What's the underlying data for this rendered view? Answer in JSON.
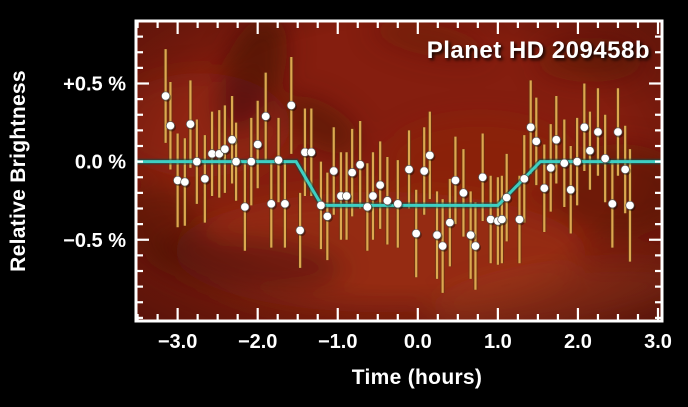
{
  "figure": {
    "title": "Planet HD 209458b",
    "xlabel": "Time (hours)",
    "ylabel": "Relative Brightness"
  },
  "chart_data": {
    "type": "scatter",
    "title": "Planet HD 209458b",
    "xlabel": "Time (hours)",
    "ylabel": "Relative Brightness",
    "xlim": [
      -3.52,
      3.05
    ],
    "ylim": [
      -1.02,
      0.9
    ],
    "x_major_ticks": [
      -3,
      -2,
      -1,
      0,
      1,
      2,
      3
    ],
    "x_tick_labels": [
      "−3.0",
      "−2.0",
      "−1.0",
      "0.0",
      "1.0",
      "2.0",
      "3.0"
    ],
    "x_minor_step": 0.25,
    "y_major_ticks": [
      0.5,
      0.0,
      -0.5
    ],
    "y_tick_labels": [
      "+0.5 %",
      "0.0 %",
      "−0.5 %"
    ],
    "y_minor_step": 0.1,
    "grid": false,
    "legend": "none",
    "transit_depth_percent": -0.28,
    "model_line": [
      [
        -3.52,
        0
      ],
      [
        -1.52,
        0
      ],
      [
        -1.2,
        -0.28
      ],
      [
        1.0,
        -0.28
      ],
      [
        1.53,
        0
      ],
      [
        3.05,
        0
      ]
    ],
    "points": [
      [
        -3.15,
        0.42,
        0.3
      ],
      [
        -3.09,
        0.23,
        0.28
      ],
      [
        -3.0,
        -0.12,
        0.3
      ],
      [
        -2.91,
        -0.13,
        0.28
      ],
      [
        -2.84,
        0.24,
        0.28
      ],
      [
        -2.76,
        0.0,
        0.27
      ],
      [
        -2.66,
        -0.11,
        0.28
      ],
      [
        -2.57,
        0.05,
        0.27
      ],
      [
        -2.48,
        0.05,
        0.28
      ],
      [
        -2.41,
        0.08,
        0.28
      ],
      [
        -2.32,
        0.14,
        0.28
      ],
      [
        -2.27,
        0.0,
        0.25
      ],
      [
        -2.16,
        -0.29,
        0.28
      ],
      [
        -2.08,
        0.0,
        0.28
      ],
      [
        -2.0,
        0.11,
        0.28
      ],
      [
        -1.9,
        0.29,
        0.28
      ],
      [
        -1.83,
        -0.27,
        0.28
      ],
      [
        -1.74,
        0.01,
        0.27
      ],
      [
        -1.66,
        -0.27,
        0.28
      ],
      [
        -1.58,
        0.36,
        0.31
      ],
      [
        -1.47,
        -0.44,
        0.24
      ],
      [
        -1.41,
        0.06,
        0.28
      ],
      [
        -1.33,
        0.06,
        0.28
      ],
      [
        -1.21,
        -0.28,
        0.28
      ],
      [
        -1.13,
        -0.35,
        0.28
      ],
      [
        -1.05,
        -0.06,
        0.28
      ],
      [
        -0.96,
        -0.22,
        0.28
      ],
      [
        -0.89,
        -0.22,
        0.28
      ],
      [
        -0.82,
        -0.07,
        0.28
      ],
      [
        -0.72,
        -0.02,
        0.28
      ],
      [
        -0.63,
        -0.29,
        0.28
      ],
      [
        -0.56,
        -0.22,
        0.28
      ],
      [
        -0.47,
        -0.15,
        0.28
      ],
      [
        -0.38,
        -0.25,
        0.28
      ],
      [
        -0.25,
        -0.27,
        0.28
      ],
      [
        -0.11,
        -0.05,
        0.25
      ],
      [
        -0.02,
        -0.46,
        0.28
      ],
      [
        0.08,
        -0.06,
        0.28
      ],
      [
        0.15,
        0.04,
        0.28
      ],
      [
        0.24,
        -0.47,
        0.28
      ],
      [
        0.31,
        -0.54,
        0.3
      ],
      [
        0.4,
        -0.39,
        0.28
      ],
      [
        0.47,
        -0.12,
        0.28
      ],
      [
        0.57,
        -0.2,
        0.28
      ],
      [
        0.66,
        -0.47,
        0.28
      ],
      [
        0.72,
        -0.54,
        0.28
      ],
      [
        0.81,
        -0.1,
        0.28
      ],
      [
        0.91,
        -0.37,
        0.28
      ],
      [
        1.0,
        -0.38,
        0.28
      ],
      [
        1.05,
        -0.37,
        0.28
      ],
      [
        1.11,
        -0.23,
        0.28
      ],
      [
        1.27,
        -0.37,
        0.28
      ],
      [
        1.33,
        -0.11,
        0.28
      ],
      [
        1.41,
        0.22,
        0.3
      ],
      [
        1.48,
        0.13,
        0.28
      ],
      [
        1.58,
        -0.17,
        0.28
      ],
      [
        1.66,
        -0.04,
        0.28
      ],
      [
        1.73,
        0.14,
        0.28
      ],
      [
        1.83,
        -0.01,
        0.28
      ],
      [
        1.91,
        -0.18,
        0.28
      ],
      [
        1.99,
        0.0,
        0.28
      ],
      [
        2.08,
        0.22,
        0.28
      ],
      [
        2.15,
        0.07,
        0.25
      ],
      [
        2.25,
        0.19,
        0.28
      ],
      [
        2.34,
        0.02,
        0.28
      ],
      [
        2.43,
        -0.27,
        0.28
      ],
      [
        2.5,
        0.19,
        0.28
      ],
      [
        2.59,
        -0.05,
        0.28
      ],
      [
        2.65,
        -0.28,
        0.36
      ]
    ],
    "colors": {
      "background": "#000000",
      "plot_background": "#851e0f",
      "axis": "#ffffff",
      "text": "#ffffff",
      "error_bar": "#dca84f",
      "error_bar_edge": "#5d3410",
      "data_point": "#ffffff",
      "model_line": "#3ecfc3",
      "model_line_edge": "#0f4a47"
    }
  }
}
